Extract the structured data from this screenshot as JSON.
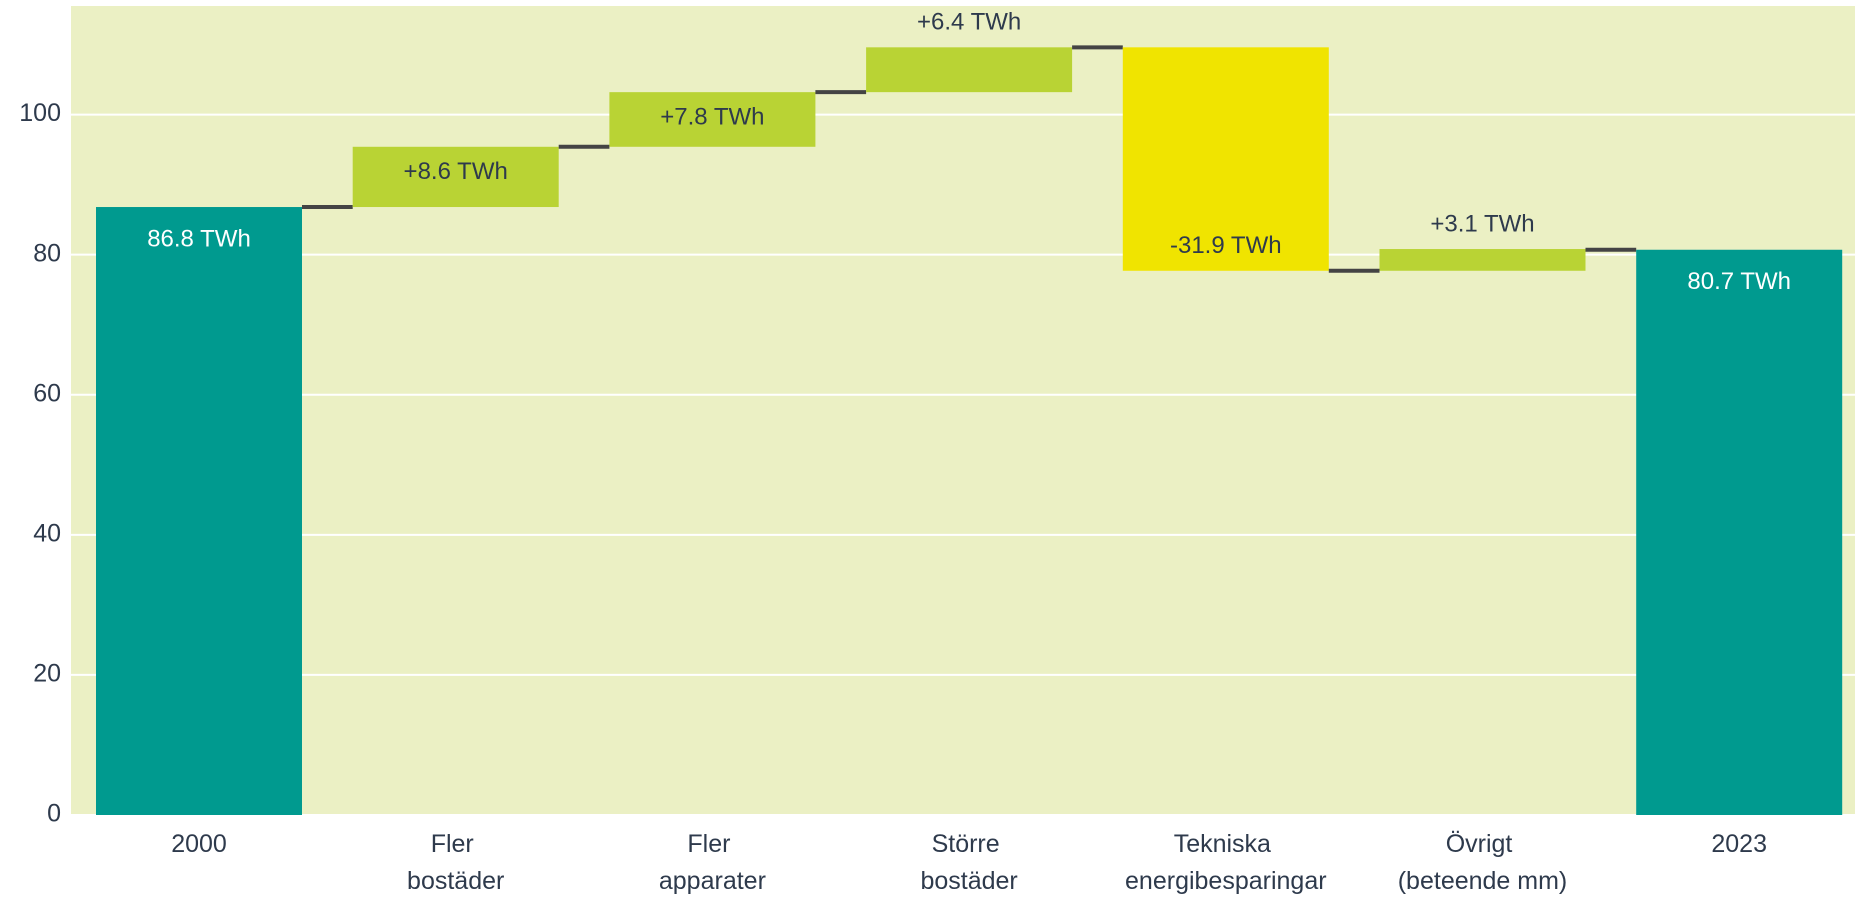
{
  "chart_data": {
    "type": "waterfall",
    "categories": [
      "2000",
      "Fler bostäder",
      "Fler apparater",
      "Större bostäder",
      "Tekniska energibesparingar",
      "Övrigt (beteende mm)",
      "2023"
    ],
    "measure": [
      "total",
      "relative",
      "relative",
      "relative",
      "relative",
      "relative",
      "total"
    ],
    "values": [
      86.8,
      8.6,
      7.8,
      6.4,
      -31.9,
      3.1,
      80.7
    ],
    "value_labels": [
      "86.8 TWh",
      "+8.6 TWh",
      "+7.8 TWh",
      "+6.4 TWh",
      "-31.9 TWh",
      "+3.1 TWh",
      "80.7 TWh"
    ],
    "colors": {
      "total": "#009a8f",
      "increase": "#b9d334",
      "decrease": "#f0e400",
      "connector": "#444444",
      "background": "#ebf0c4"
    },
    "ylim": [
      0,
      115.5
    ],
    "yticks": [
      0,
      20,
      40,
      60,
      80,
      100
    ],
    "grid": true
  }
}
